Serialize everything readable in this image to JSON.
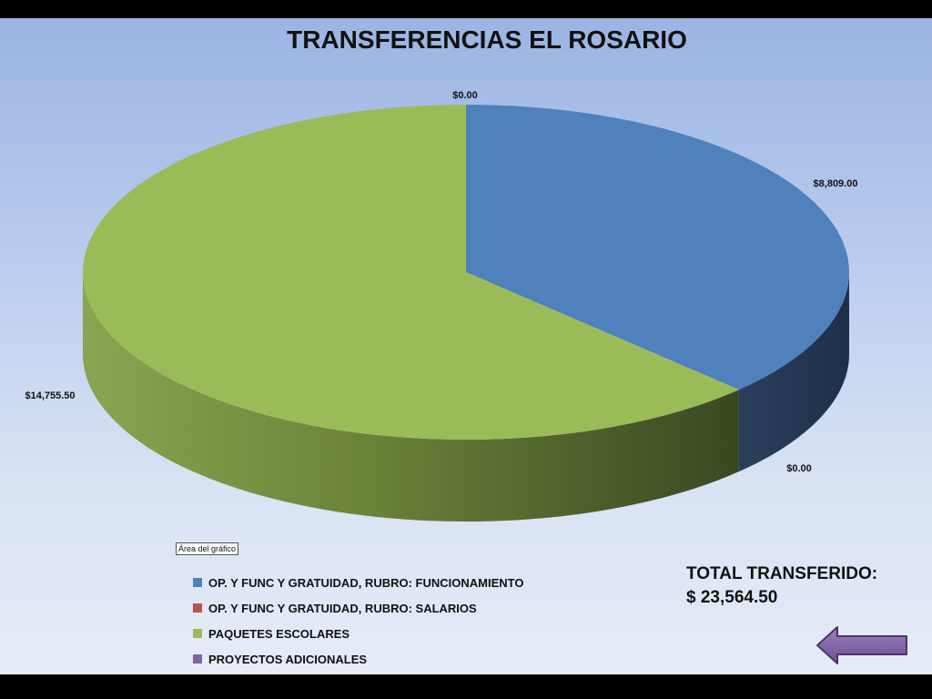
{
  "chart_data": {
    "type": "pie",
    "title": "TRANSFERENCIAS EL ROSARIO",
    "categories": [
      "OP. Y FUNC Y GRATUIDAD,  RUBRO: FUNCIONAMIENTO",
      "OP. Y FUNC Y GRATUIDAD,  RUBRO: SALARIOS",
      "PAQUETES ESCOLARES",
      "PROYECTOS  ADICIONALES"
    ],
    "values": [
      8809.0,
      0.0,
      14755.5,
      0.0
    ],
    "data_labels": [
      "$8,809.00",
      "$0.00",
      "$14,755.50",
      "$0.00"
    ],
    "colors": [
      "#4f81bd",
      "#c0504d",
      "#9bbb59",
      "#8064a2"
    ],
    "legend_position": "bottom",
    "three_d": true
  },
  "tooltip": "Área del gráfico",
  "total": {
    "label": "TOTAL TRANSFERIDO:",
    "value": "$ 23,564.50"
  },
  "nav": {
    "icon": "left-arrow-icon",
    "color": "#8064a2"
  }
}
